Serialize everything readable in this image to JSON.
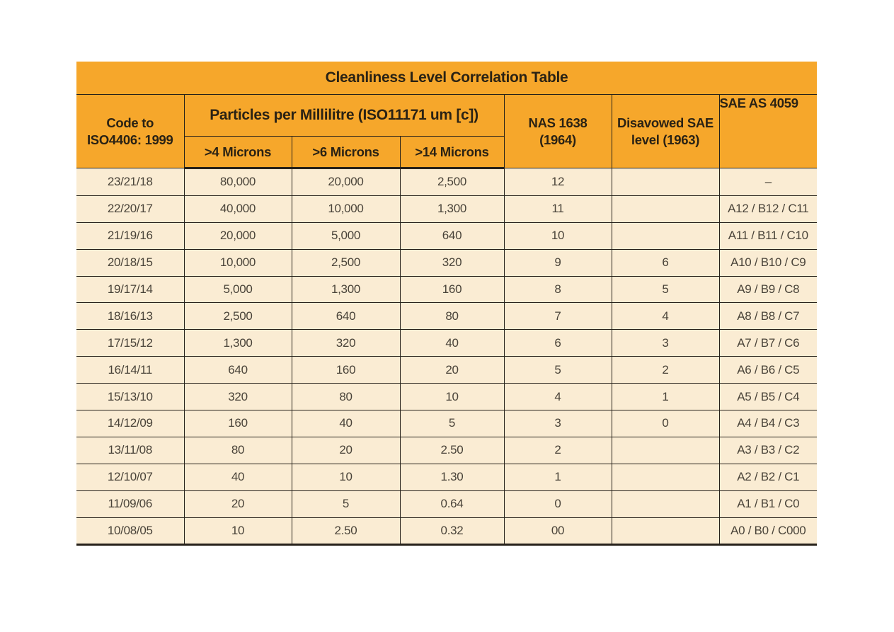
{
  "title": "Cleanliness Level Correlation Table",
  "colors": {
    "header_orange": "#f6a72b",
    "body_cream": "#faecd3",
    "border_dark": "#26211a",
    "title_text": "#2a2214",
    "body_text": "#494339",
    "page_background": "#ffffff"
  },
  "header": {
    "code_line1": "Code to",
    "code_line2": "ISO4406: 1999",
    "particles_group": "Particles per Millilitre (ISO11171 um [c])",
    "sub_cols": [
      ">4 Microns",
      ">6 Microns",
      ">14 Microns"
    ],
    "nas_line1": "NAS 1638",
    "nas_line2": "(1964)",
    "disavowed_line1": "Disavowed SAE",
    "disavowed_line2": "level (1963)",
    "sae_as": "SAE AS 4059"
  },
  "rows": [
    {
      "code": "23/21/18",
      "m4": "80,000",
      "m6": "20,000",
      "m14": "2,500",
      "nas": "12",
      "sae_level": "",
      "sae_as": "–"
    },
    {
      "code": "22/20/17",
      "m4": "40,000",
      "m6": "10,000",
      "m14": "1,300",
      "nas": "11",
      "sae_level": "",
      "sae_as": "A12 / B12 / C11"
    },
    {
      "code": "21/19/16",
      "m4": "20,000",
      "m6": "5,000",
      "m14": "640",
      "nas": "10",
      "sae_level": "",
      "sae_as": "A11 / B11 / C10"
    },
    {
      "code": "20/18/15",
      "m4": "10,000",
      "m6": "2,500",
      "m14": "320",
      "nas": "9",
      "sae_level": "6",
      "sae_as": "A10 / B10 / C9"
    },
    {
      "code": "19/17/14",
      "m4": "5,000",
      "m6": "1,300",
      "m14": "160",
      "nas": "8",
      "sae_level": "5",
      "sae_as": "A9 / B9 / C8"
    },
    {
      "code": "18/16/13",
      "m4": "2,500",
      "m6": "640",
      "m14": "80",
      "nas": "7",
      "sae_level": "4",
      "sae_as": "A8 / B8 / C7"
    },
    {
      "code": "17/15/12",
      "m4": "1,300",
      "m6": "320",
      "m14": "40",
      "nas": "6",
      "sae_level": "3",
      "sae_as": "A7 / B7 / C6"
    },
    {
      "code": "16/14/11",
      "m4": "640",
      "m6": "160",
      "m14": "20",
      "nas": "5",
      "sae_level": "2",
      "sae_as": "A6 / B6 / C5"
    },
    {
      "code": "15/13/10",
      "m4": "320",
      "m6": "80",
      "m14": "10",
      "nas": "4",
      "sae_level": "1",
      "sae_as": "A5 / B5 / C4"
    },
    {
      "code": "14/12/09",
      "m4": "160",
      "m6": "40",
      "m14": "5",
      "nas": "3",
      "sae_level": "0",
      "sae_as": "A4 / B4 / C3"
    },
    {
      "code": "13/11/08",
      "m4": "80",
      "m6": "20",
      "m14": "2.50",
      "nas": "2",
      "sae_level": "",
      "sae_as": "A3 / B3 / C2"
    },
    {
      "code": "12/10/07",
      "m4": "40",
      "m6": "10",
      "m14": "1.30",
      "nas": "1",
      "sae_level": "",
      "sae_as": "A2 / B2 / C1"
    },
    {
      "code": "11/09/06",
      "m4": "20",
      "m6": "5",
      "m14": "0.64",
      "nas": "0",
      "sae_level": "",
      "sae_as": "A1 / B1 / C0"
    },
    {
      "code": "10/08/05",
      "m4": "10",
      "m6": "2.50",
      "m14": "0.32",
      "nas": "00",
      "sae_level": "",
      "sae_as": "A0 / B0 / C000"
    }
  ]
}
